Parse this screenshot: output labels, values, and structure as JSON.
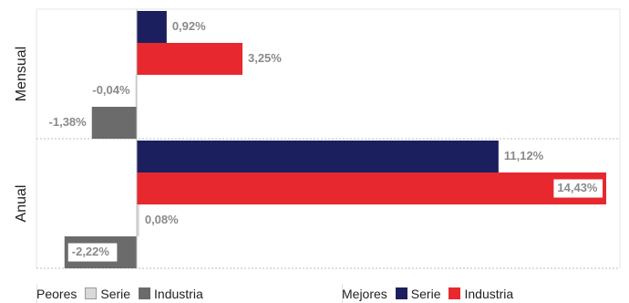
{
  "chart_data": {
    "type": "bar",
    "orientation": "horizontal",
    "groups": [
      {
        "name": "Mensual",
        "bars": [
          {
            "series": "Mejores Serie",
            "value": 0.92,
            "label": "0,92%"
          },
          {
            "series": "Mejores Industria",
            "value": 3.25,
            "label": "3,25%"
          },
          {
            "series": "Peores Serie",
            "value": -0.04,
            "label": "-0,04%"
          },
          {
            "series": "Peores Industria",
            "value": -1.38,
            "label": "-1,38%"
          }
        ]
      },
      {
        "name": "Anual",
        "bars": [
          {
            "series": "Mejores Serie",
            "value": 11.12,
            "label": "11,12%"
          },
          {
            "series": "Mejores Industria",
            "value": 14.43,
            "label": "14,43%"
          },
          {
            "series": "Peores Serie",
            "value": 0.08,
            "label": "0,08%"
          },
          {
            "series": "Peores Industria",
            "value": -2.22,
            "label": "-2,22%"
          }
        ]
      }
    ],
    "xlim": [
      -3.0,
      14.7
    ],
    "grid": true,
    "colors": {
      "Mejores Serie": "#1c1f5e",
      "Mejores Industria": "#e8282f",
      "Peores Serie": "#d9d9d9",
      "Peores Industria": "#6b6b6b",
      "label_text": "#8a8a8a"
    }
  },
  "legend": {
    "peores": {
      "title": "Peores",
      "serie": "Serie",
      "industria": "Industria"
    },
    "mejores": {
      "title": "Mejores",
      "serie": "Serie",
      "industria": "Industria"
    }
  }
}
